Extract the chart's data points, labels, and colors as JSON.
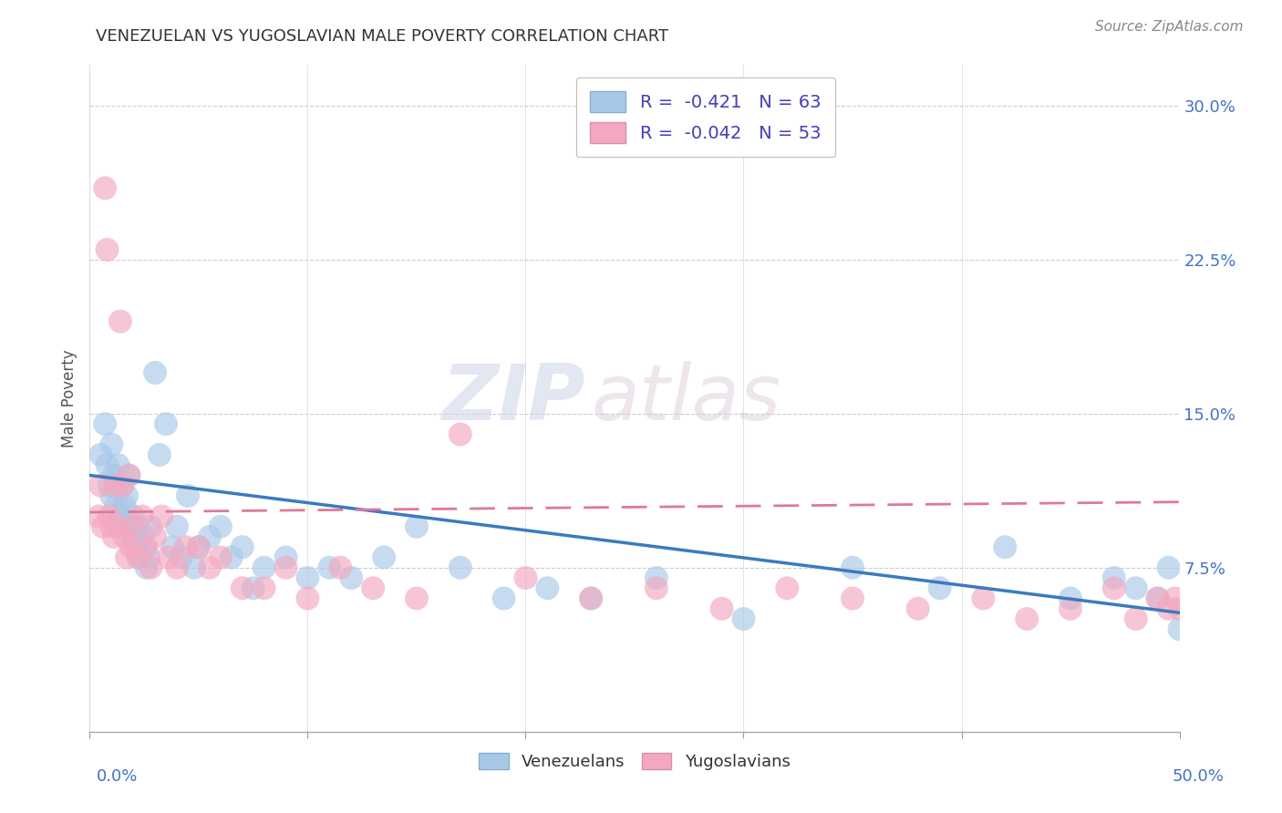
{
  "title": "VENEZUELAN VS YUGOSLAVIAN MALE POVERTY CORRELATION CHART",
  "source": "Source: ZipAtlas.com",
  "ylabel": "Male Poverty",
  "xlim": [
    0.0,
    0.5
  ],
  "ylim": [
    -0.005,
    0.32
  ],
  "legend_r_blue": "R = -0.421",
  "legend_n_blue": "N = 63",
  "legend_r_pink": "R = -0.042",
  "legend_n_pink": "N = 53",
  "color_blue": "#a8c8e8",
  "color_pink": "#f4a8c0",
  "watermark_zip": "ZIP",
  "watermark_atlas": "atlas",
  "venezuelans_x": [
    0.005,
    0.007,
    0.008,
    0.009,
    0.01,
    0.01,
    0.011,
    0.012,
    0.012,
    0.013,
    0.014,
    0.015,
    0.015,
    0.016,
    0.017,
    0.018,
    0.019,
    0.02,
    0.02,
    0.021,
    0.022,
    0.023,
    0.024,
    0.025,
    0.026,
    0.027,
    0.028,
    0.03,
    0.032,
    0.035,
    0.038,
    0.04,
    0.042,
    0.045,
    0.048,
    0.05,
    0.055,
    0.06,
    0.065,
    0.07,
    0.075,
    0.08,
    0.09,
    0.1,
    0.11,
    0.12,
    0.135,
    0.15,
    0.17,
    0.19,
    0.21,
    0.23,
    0.26,
    0.3,
    0.35,
    0.39,
    0.42,
    0.45,
    0.47,
    0.48,
    0.49,
    0.495,
    0.5
  ],
  "venezuelans_y": [
    0.13,
    0.145,
    0.125,
    0.115,
    0.11,
    0.135,
    0.12,
    0.115,
    0.105,
    0.125,
    0.1,
    0.115,
    0.095,
    0.105,
    0.11,
    0.12,
    0.095,
    0.1,
    0.09,
    0.085,
    0.095,
    0.08,
    0.09,
    0.085,
    0.075,
    0.08,
    0.095,
    0.17,
    0.13,
    0.145,
    0.085,
    0.095,
    0.08,
    0.11,
    0.075,
    0.085,
    0.09,
    0.095,
    0.08,
    0.085,
    0.065,
    0.075,
    0.08,
    0.07,
    0.075,
    0.07,
    0.08,
    0.095,
    0.075,
    0.06,
    0.065,
    0.06,
    0.07,
    0.05,
    0.075,
    0.065,
    0.085,
    0.06,
    0.07,
    0.065,
    0.06,
    0.075,
    0.045
  ],
  "yugoslavians_x": [
    0.004,
    0.005,
    0.006,
    0.007,
    0.008,
    0.009,
    0.01,
    0.011,
    0.012,
    0.013,
    0.014,
    0.015,
    0.016,
    0.017,
    0.018,
    0.019,
    0.02,
    0.022,
    0.024,
    0.026,
    0.028,
    0.03,
    0.033,
    0.036,
    0.04,
    0.044,
    0.05,
    0.055,
    0.06,
    0.07,
    0.08,
    0.09,
    0.1,
    0.115,
    0.13,
    0.15,
    0.17,
    0.2,
    0.23,
    0.26,
    0.29,
    0.32,
    0.35,
    0.38,
    0.41,
    0.43,
    0.45,
    0.47,
    0.48,
    0.49,
    0.495,
    0.498,
    0.5
  ],
  "yugoslavians_y": [
    0.1,
    0.115,
    0.095,
    0.26,
    0.23,
    0.1,
    0.095,
    0.09,
    0.115,
    0.095,
    0.195,
    0.115,
    0.09,
    0.08,
    0.12,
    0.085,
    0.095,
    0.08,
    0.1,
    0.085,
    0.075,
    0.09,
    0.1,
    0.08,
    0.075,
    0.085,
    0.085,
    0.075,
    0.08,
    0.065,
    0.065,
    0.075,
    0.06,
    0.075,
    0.065,
    0.06,
    0.14,
    0.07,
    0.06,
    0.065,
    0.055,
    0.065,
    0.06,
    0.055,
    0.06,
    0.05,
    0.055,
    0.065,
    0.05,
    0.06,
    0.055,
    0.06,
    0.055
  ],
  "blue_trend_x0": 0.0,
  "blue_trend_x1": 0.5,
  "blue_trend_y0": 0.12,
  "blue_trend_y1": 0.053,
  "pink_trend_x0": 0.0,
  "pink_trend_x1": 0.5,
  "pink_trend_y0": 0.102,
  "pink_trend_y1": 0.107,
  "ytick_vals": [
    0.075,
    0.15,
    0.225,
    0.3
  ],
  "ytick_labels": [
    "7.5%",
    "15.0%",
    "22.5%",
    "30.0%"
  ],
  "xtick_minor_vals": [
    0.1,
    0.2,
    0.3,
    0.4
  ],
  "title_fontsize": 13,
  "source_fontsize": 11,
  "axis_label_color": "#4472c4",
  "title_color": "#333333"
}
